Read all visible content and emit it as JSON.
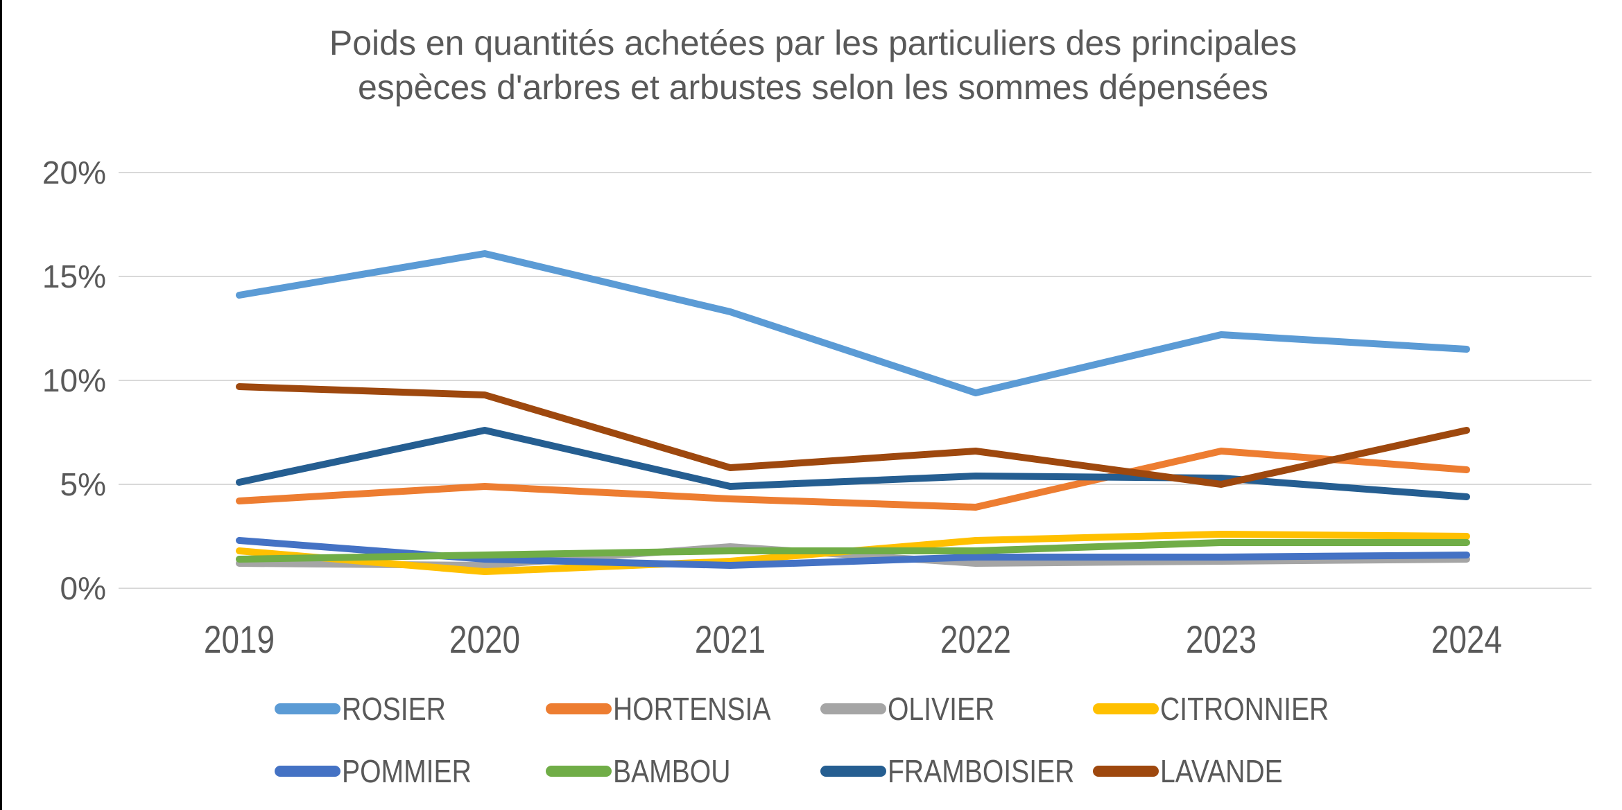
{
  "title": {
    "line1": "Poids en quantités achetées par les particuliers des principales",
    "line2": "espèces d'arbres et arbustes selon les sommes dépensées"
  },
  "colors": {
    "text": "#595959",
    "gridline": "#D9D9D9",
    "left_edge_border": "#000000"
  },
  "chart_data": {
    "type": "line",
    "title": "Poids en quantités achetées par les particuliers des principales espèces d'arbres et arbustes selon les sommes dépensées",
    "categories": [
      "2019",
      "2020",
      "2021",
      "2022",
      "2023",
      "2024"
    ],
    "series": [
      {
        "name": "ROSIER",
        "color": "#5B9BD5",
        "values": [
          14.1,
          16.1,
          13.3,
          9.4,
          12.2,
          11.5
        ]
      },
      {
        "name": "HORTENSIA",
        "color": "#ED7D31",
        "values": [
          4.2,
          4.9,
          4.3,
          3.9,
          6.6,
          5.7
        ]
      },
      {
        "name": "OLIVIER",
        "color": "#A5A5A5",
        "values": [
          1.2,
          1.1,
          2.0,
          1.2,
          1.3,
          1.4
        ]
      },
      {
        "name": "CITRONNIER",
        "color": "#FFC000",
        "values": [
          1.8,
          0.8,
          1.3,
          2.3,
          2.6,
          2.5
        ]
      },
      {
        "name": "POMMIER",
        "color": "#4472C4",
        "values": [
          2.3,
          1.4,
          1.1,
          1.5,
          1.5,
          1.6
        ]
      },
      {
        "name": "BAMBOU",
        "color": "#70AD47",
        "values": [
          1.4,
          1.6,
          1.8,
          1.8,
          2.2,
          2.2
        ]
      },
      {
        "name": "FRAMBOISIER",
        "color": "#255E91",
        "values": [
          5.1,
          7.6,
          4.9,
          5.4,
          5.3,
          4.4
        ]
      },
      {
        "name": "LAVANDE",
        "color": "#9E480E",
        "values": [
          9.7,
          9.3,
          5.8,
          6.6,
          5.0,
          7.6
        ]
      }
    ],
    "xlabel": "",
    "ylabel": "",
    "ylim": [
      0,
      20
    ],
    "ytick_step": 5,
    "ytick_labels": [
      "0%",
      "5%",
      "10%",
      "15%",
      "20%"
    ],
    "grid": true,
    "legend_position": "bottom",
    "legend_rows": [
      [
        "ROSIER",
        "HORTENSIA",
        "OLIVIER",
        "CITRONNIER"
      ],
      [
        "POMMIER",
        "BAMBOU",
        "FRAMBOISIER",
        "LAVANDE"
      ]
    ]
  }
}
